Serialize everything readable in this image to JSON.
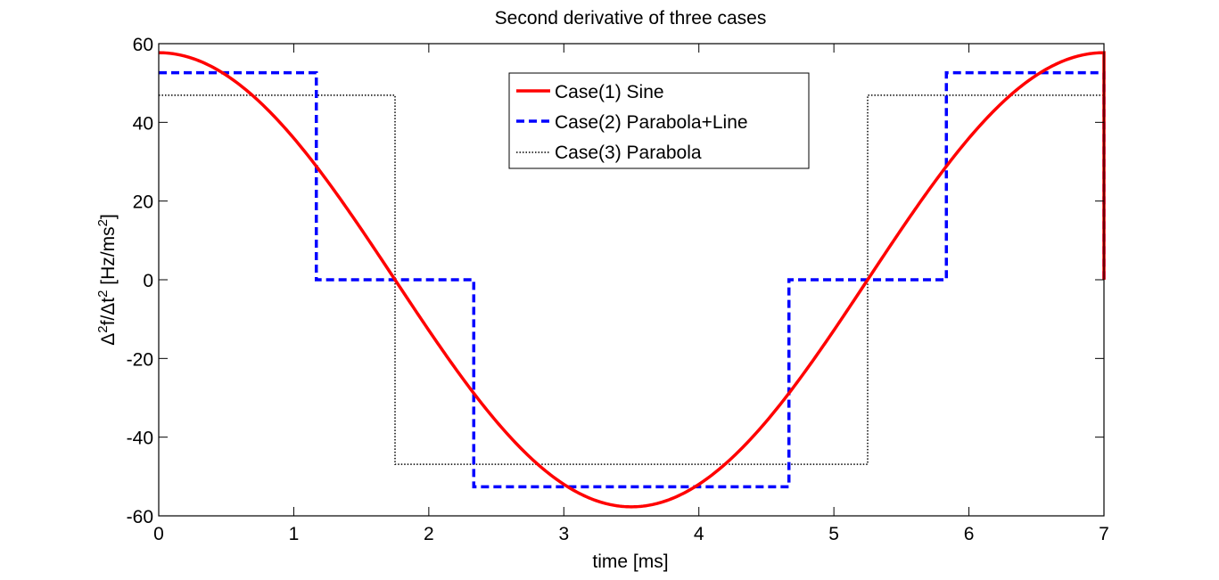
{
  "chart_data": {
    "type": "line",
    "title": "Second derivative of three cases",
    "xlabel": "time [ms]",
    "ylabel": {
      "delta1": "Δ",
      "sup1": "2",
      "mid": "f/Δt",
      "sup2": "2",
      "unit": " [Hz/ms",
      "sup3": "2",
      "close": "]"
    },
    "xlim": [
      0,
      7
    ],
    "ylim": [
      -60,
      60
    ],
    "xticks": [
      0,
      1,
      2,
      3,
      4,
      5,
      6,
      7
    ],
    "xtick_labels": [
      "0",
      "1",
      "2",
      "3",
      "4",
      "5",
      "6",
      "7"
    ],
    "yticks": [
      -60,
      -40,
      -20,
      0,
      20,
      40,
      60
    ],
    "ytick_labels": [
      "-60",
      "-40",
      "-20",
      "0",
      "20",
      "40",
      "60"
    ],
    "grid": false,
    "legend_position": "top-center",
    "series": [
      {
        "name": "Case(1) Sine",
        "color": "#ff0000",
        "style": "solid",
        "kind": "cosine",
        "amplitude": 57.7,
        "period": 7,
        "x_range": [
          0,
          7
        ]
      },
      {
        "name": "Case(2) Parabola+Line",
        "color": "#0000ff",
        "style": "dashed",
        "kind": "step",
        "x": [
          0,
          1.167,
          1.167,
          2.333,
          2.333,
          4.667,
          4.667,
          5.833,
          5.833,
          7,
          7
        ],
        "y": [
          52.6,
          52.6,
          0,
          0,
          -52.6,
          -52.6,
          0,
          0,
          52.6,
          52.6,
          0
        ]
      },
      {
        "name": "Case(3) Parabola",
        "color": "#000000",
        "style": "dotted",
        "kind": "step",
        "x": [
          0,
          1.75,
          1.75,
          5.25,
          5.25,
          7,
          7
        ],
        "y": [
          46.9,
          46.9,
          -46.9,
          -46.9,
          46.9,
          46.9,
          0
        ]
      }
    ]
  }
}
